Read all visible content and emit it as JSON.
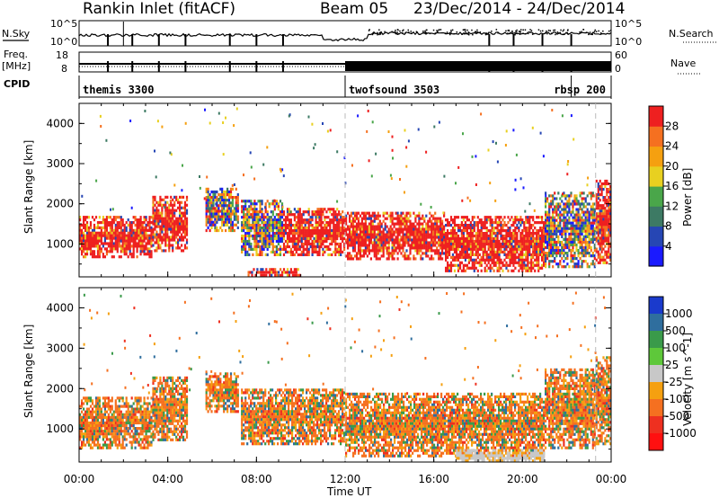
{
  "header": {
    "station": "Rankin Inlet (fitACF)",
    "beam": "Beam 05",
    "date_range": "23/Dec/2014 - 24/Dec/2014"
  },
  "strips": {
    "nsky_label": "N.Sky",
    "nsky_ticks": [
      "10^5",
      "10^0"
    ],
    "nsearch_label": "N.Search",
    "nsearch_ticks": [
      "10^5",
      "10^0"
    ],
    "freq_label": "Freq.",
    "freq_unit": "[MHz]",
    "freq_ticks": [
      "18",
      "8"
    ],
    "nave_label": "Nave",
    "nave_ticks": [
      "60",
      "0"
    ],
    "cpid_label": "CPID",
    "cpid_segments": [
      {
        "name": "themis 3300",
        "start_hour": 0,
        "end_hour": 12
      },
      {
        "name": "twofsound 3503",
        "start_hour": 12,
        "end_hour": 22.2
      },
      {
        "name": "rbsp 200",
        "start_hour": 22.2,
        "end_hour": 24
      }
    ]
  },
  "x_axis": {
    "label": "Time UT",
    "ticks": [
      "00:00",
      "04:00",
      "08:00",
      "12:00",
      "16:00",
      "20:00",
      "00:00"
    ],
    "range_hours": [
      0,
      24
    ]
  },
  "chart_data": [
    {
      "type": "heatmap",
      "panel": "power",
      "ylabel": "Slant Range [km]",
      "yticks": [
        "1000",
        "2000",
        "3000",
        "4000"
      ],
      "ylim": [
        180,
        4500
      ],
      "colorbar_label": "Power [dB]",
      "colorbar_ticks": [
        "4",
        "8",
        "12",
        "16",
        "20",
        "24",
        "28"
      ],
      "colorbar_colors": [
        "#1a1aff",
        "#2646b4",
        "#3d7a64",
        "#4aa64a",
        "#e8d020",
        "#f5a010",
        "#f57020",
        "#ee2020"
      ],
      "regions": [
        {
          "start_hour": 0.0,
          "end_hour": 3.3,
          "range_low_km": 650,
          "range_high_km": 1700,
          "level": "high"
        },
        {
          "start_hour": 3.3,
          "end_hour": 4.9,
          "range_low_km": 800,
          "range_high_km": 2200,
          "level": "high"
        },
        {
          "start_hour": 5.7,
          "end_hour": 7.2,
          "range_low_km": 1300,
          "range_high_km": 2400,
          "level": "mixed"
        },
        {
          "start_hour": 7.3,
          "end_hour": 9.2,
          "range_low_km": 700,
          "range_high_km": 2100,
          "level": "mixed"
        },
        {
          "start_hour": 7.6,
          "end_hour": 10.0,
          "range_low_km": 180,
          "range_high_km": 400,
          "level": "high"
        },
        {
          "start_hour": 9.2,
          "end_hour": 12.0,
          "range_low_km": 700,
          "range_high_km": 1900,
          "level": "high"
        },
        {
          "start_hour": 12.0,
          "end_hour": 16.5,
          "range_low_km": 600,
          "range_high_km": 1800,
          "level": "high"
        },
        {
          "start_hour": 16.5,
          "end_hour": 21.0,
          "range_low_km": 300,
          "range_high_km": 1700,
          "level": "high"
        },
        {
          "start_hour": 21.0,
          "end_hour": 23.3,
          "range_low_km": 400,
          "range_high_km": 2300,
          "level": "mixed"
        },
        {
          "start_hour": 23.3,
          "end_hour": 24.0,
          "range_low_km": 500,
          "range_high_km": 2600,
          "level": "high"
        }
      ]
    },
    {
      "type": "heatmap",
      "panel": "velocity",
      "ylabel": "Slant Range [km]",
      "yticks": [
        "1000",
        "2000",
        "3000",
        "4000"
      ],
      "ylim": [
        180,
        4500
      ],
      "colorbar_label": "Velocity [m s^-1]",
      "colorbar_ticks": [
        "1000",
        "500",
        "100",
        "25",
        "-25",
        "-100",
        "-500",
        "-1000"
      ],
      "colorbar_colors": [
        "#1a3acc",
        "#2f6e9e",
        "#3a9a4a",
        "#5ec83a",
        "#c8c8c8",
        "#f5a010",
        "#f57020",
        "#ee3020",
        "#ff1010"
      ],
      "regions": [
        {
          "start_hour": 0.0,
          "end_hour": 3.3,
          "range_low_km": 500,
          "range_high_km": 1800,
          "level": "mixed"
        },
        {
          "start_hour": 3.3,
          "end_hour": 4.9,
          "range_low_km": 700,
          "range_high_km": 2300,
          "level": "mixed"
        },
        {
          "start_hour": 5.7,
          "end_hour": 7.2,
          "range_low_km": 1400,
          "range_high_km": 2400,
          "level": "mixed"
        },
        {
          "start_hour": 7.3,
          "end_hour": 12.0,
          "range_low_km": 600,
          "range_high_km": 2000,
          "level": "mixed"
        },
        {
          "start_hour": 12.0,
          "end_hour": 21.0,
          "range_low_km": 300,
          "range_high_km": 1900,
          "level": "mixed"
        },
        {
          "start_hour": 17.0,
          "end_hour": 21.0,
          "range_low_km": 180,
          "range_high_km": 500,
          "level": "low"
        },
        {
          "start_hour": 21.0,
          "end_hour": 23.3,
          "range_low_km": 500,
          "range_high_km": 2500,
          "level": "mixed"
        },
        {
          "start_hour": 23.3,
          "end_hour": 24.0,
          "range_low_km": 600,
          "range_high_km": 2800,
          "level": "mixed"
        }
      ]
    }
  ]
}
